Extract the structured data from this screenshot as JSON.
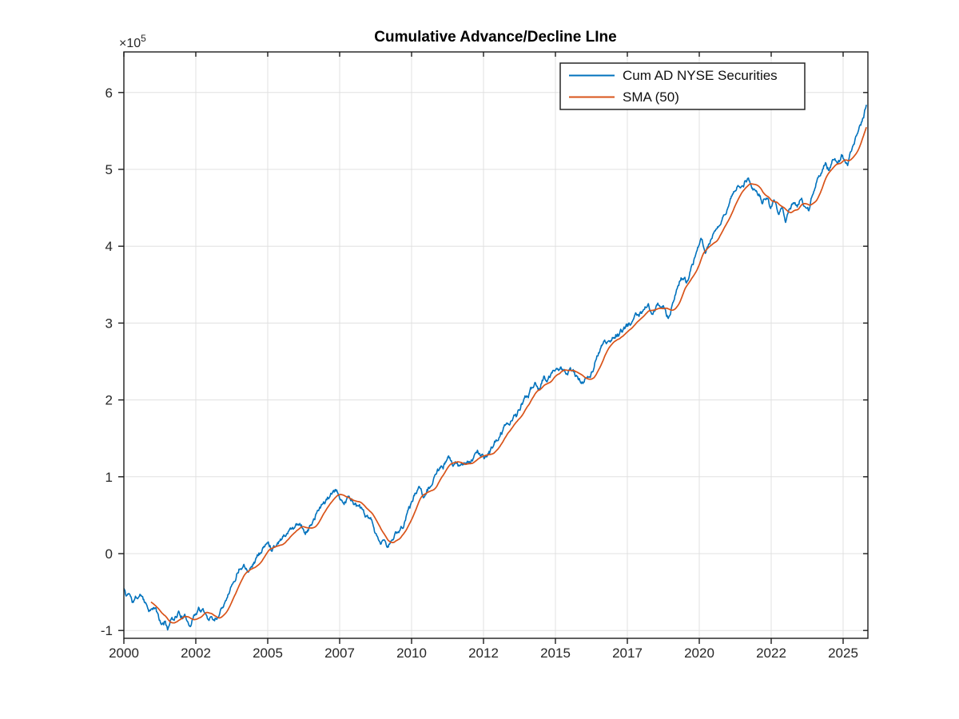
{
  "figure": {
    "background": "#ffffff"
  },
  "chart_data": {
    "type": "line",
    "title": "Cumulative Advance/Decline LIne",
    "xlabel": "",
    "ylabel": "",
    "y_axis_multiplier": {
      "base": "×10",
      "exponent": "5"
    },
    "xlim": [
      2000,
      2025.86
    ],
    "ylim": [
      -1.102,
      6.528
    ],
    "grid": true,
    "x_ticks": [
      {
        "value": 2000.0,
        "label": "2000"
      },
      {
        "value": 2002.5,
        "label": "2002"
      },
      {
        "value": 2005.0,
        "label": "2005"
      },
      {
        "value": 2007.5,
        "label": "2007"
      },
      {
        "value": 2010.0,
        "label": "2010"
      },
      {
        "value": 2012.5,
        "label": "2012"
      },
      {
        "value": 2015.0,
        "label": "2015"
      },
      {
        "value": 2017.5,
        "label": "2017"
      },
      {
        "value": 2020.0,
        "label": "2020"
      },
      {
        "value": 2022.5,
        "label": "2022"
      },
      {
        "value": 2025.0,
        "label": "2025"
      }
    ],
    "y_ticks": [
      {
        "value": -1,
        "label": "-1"
      },
      {
        "value": 0,
        "label": "0"
      },
      {
        "value": 1,
        "label": "1"
      },
      {
        "value": 2,
        "label": "2"
      },
      {
        "value": 3,
        "label": "3"
      },
      {
        "value": 4,
        "label": "4"
      },
      {
        "value": 5,
        "label": "5"
      },
      {
        "value": 6,
        "label": "6"
      }
    ],
    "colors": {
      "axis": "#1c1c1c",
      "grid": "#e0e0e0",
      "cum_ad_line": "#0072BD",
      "sma_line": "#D95319"
    },
    "legend": {
      "position": "top-right-inside",
      "entries": [
        "Cum AD NYSE Securities",
        "SMA (50)"
      ]
    },
    "sampling": {
      "points_per_year": 52,
      "noise_seed": 11,
      "noise_persistence": 0.86,
      "noise_shock": 0.05
    },
    "series": [
      {
        "name": "Cum AD NYSE Securities",
        "color": "#0072BD",
        "value_units": "1e5",
        "points": [
          [
            2000.0,
            -0.45
          ],
          [
            2000.08,
            -0.56
          ],
          [
            2000.18,
            -0.5
          ],
          [
            2000.3,
            -0.63
          ],
          [
            2000.42,
            -0.59
          ],
          [
            2000.55,
            -0.56
          ],
          [
            2000.65,
            -0.54
          ],
          [
            2000.8,
            -0.66
          ],
          [
            2000.95,
            -0.73
          ],
          [
            2001.05,
            -0.7
          ],
          [
            2001.18,
            -0.8
          ],
          [
            2001.3,
            -0.95
          ],
          [
            2001.4,
            -0.89
          ],
          [
            2001.52,
            -0.97
          ],
          [
            2001.62,
            -0.87
          ],
          [
            2001.75,
            -0.82
          ],
          [
            2001.9,
            -0.76
          ],
          [
            2002.0,
            -0.8
          ],
          [
            2002.15,
            -0.85
          ],
          [
            2002.3,
            -0.9
          ],
          [
            2002.45,
            -0.79
          ],
          [
            2002.6,
            -0.7
          ],
          [
            2002.75,
            -0.75
          ],
          [
            2002.9,
            -0.84
          ],
          [
            2003.05,
            -0.81
          ],
          [
            2003.15,
            -0.85
          ],
          [
            2003.3,
            -0.78
          ],
          [
            2003.45,
            -0.65
          ],
          [
            2003.6,
            -0.5
          ],
          [
            2003.8,
            -0.37
          ],
          [
            2004.0,
            -0.18
          ],
          [
            2004.15,
            -0.11
          ],
          [
            2004.3,
            -0.17
          ],
          [
            2004.5,
            -0.1
          ],
          [
            2004.65,
            -0.01
          ],
          [
            2004.8,
            0.05
          ],
          [
            2005.0,
            0.14
          ],
          [
            2005.12,
            0.08
          ],
          [
            2005.3,
            0.15
          ],
          [
            2005.5,
            0.23
          ],
          [
            2005.7,
            0.3
          ],
          [
            2005.88,
            0.35
          ],
          [
            2006.05,
            0.39
          ],
          [
            2006.15,
            0.41
          ],
          [
            2006.3,
            0.29
          ],
          [
            2006.45,
            0.33
          ],
          [
            2006.6,
            0.45
          ],
          [
            2006.78,
            0.56
          ],
          [
            2006.95,
            0.66
          ],
          [
            2007.1,
            0.72
          ],
          [
            2007.25,
            0.77
          ],
          [
            2007.38,
            0.79
          ],
          [
            2007.5,
            0.72
          ],
          [
            2007.62,
            0.67
          ],
          [
            2007.78,
            0.73
          ],
          [
            2007.95,
            0.7
          ],
          [
            2008.1,
            0.62
          ],
          [
            2008.25,
            0.56
          ],
          [
            2008.4,
            0.46
          ],
          [
            2008.55,
            0.41
          ],
          [
            2008.7,
            0.33
          ],
          [
            2008.85,
            0.15
          ],
          [
            2008.95,
            0.1
          ],
          [
            2009.02,
            0.19
          ],
          [
            2009.1,
            0.12
          ],
          [
            2009.18,
            0.07
          ],
          [
            2009.3,
            0.17
          ],
          [
            2009.5,
            0.27
          ],
          [
            2009.7,
            0.36
          ],
          [
            2009.9,
            0.6
          ],
          [
            2010.05,
            0.73
          ],
          [
            2010.2,
            0.82
          ],
          [
            2010.33,
            0.86
          ],
          [
            2010.45,
            0.77
          ],
          [
            2010.6,
            0.84
          ],
          [
            2010.75,
            0.95
          ],
          [
            2010.9,
            1.05
          ],
          [
            2011.1,
            1.13
          ],
          [
            2011.3,
            1.2
          ],
          [
            2011.45,
            1.15
          ],
          [
            2011.58,
            1.19
          ],
          [
            2011.7,
            1.1
          ],
          [
            2011.82,
            1.14
          ],
          [
            2011.95,
            1.17
          ],
          [
            2012.1,
            1.25
          ],
          [
            2012.3,
            1.31
          ],
          [
            2012.5,
            1.24
          ],
          [
            2012.65,
            1.29
          ],
          [
            2012.82,
            1.36
          ],
          [
            2013.0,
            1.49
          ],
          [
            2013.2,
            1.61
          ],
          [
            2013.4,
            1.72
          ],
          [
            2013.55,
            1.8
          ],
          [
            2013.65,
            1.76
          ],
          [
            2013.82,
            1.95
          ],
          [
            2014.0,
            2.03
          ],
          [
            2014.15,
            2.12
          ],
          [
            2014.3,
            2.24
          ],
          [
            2014.45,
            2.18
          ],
          [
            2014.6,
            2.3
          ],
          [
            2014.72,
            2.23
          ],
          [
            2014.9,
            2.36
          ],
          [
            2015.05,
            2.42
          ],
          [
            2015.25,
            2.44
          ],
          [
            2015.4,
            2.36
          ],
          [
            2015.55,
            2.39
          ],
          [
            2015.7,
            2.31
          ],
          [
            2015.85,
            2.28
          ],
          [
            2016.0,
            2.22
          ],
          [
            2016.1,
            2.32
          ],
          [
            2016.2,
            2.25
          ],
          [
            2016.35,
            2.46
          ],
          [
            2016.5,
            2.61
          ],
          [
            2016.65,
            2.73
          ],
          [
            2016.8,
            2.72
          ],
          [
            2016.95,
            2.8
          ],
          [
            2017.1,
            2.85
          ],
          [
            2017.3,
            2.9
          ],
          [
            2017.5,
            2.95
          ],
          [
            2017.7,
            3.03
          ],
          [
            2017.9,
            3.11
          ],
          [
            2018.1,
            3.18
          ],
          [
            2018.22,
            3.22
          ],
          [
            2018.35,
            3.1
          ],
          [
            2018.5,
            3.18
          ],
          [
            2018.65,
            3.26
          ],
          [
            2018.8,
            3.19
          ],
          [
            2018.92,
            3.06
          ],
          [
            2019.05,
            3.25
          ],
          [
            2019.2,
            3.42
          ],
          [
            2019.35,
            3.57
          ],
          [
            2019.45,
            3.6
          ],
          [
            2019.55,
            3.53
          ],
          [
            2019.75,
            3.76
          ],
          [
            2019.95,
            3.96
          ],
          [
            2020.1,
            4.05
          ],
          [
            2020.16,
            3.92
          ],
          [
            2020.22,
            3.84
          ],
          [
            2020.35,
            4.01
          ],
          [
            2020.5,
            4.16
          ],
          [
            2020.65,
            4.28
          ],
          [
            2020.8,
            4.36
          ],
          [
            2020.95,
            4.46
          ],
          [
            2021.1,
            4.6
          ],
          [
            2021.25,
            4.74
          ],
          [
            2021.4,
            4.8
          ],
          [
            2021.55,
            4.83
          ],
          [
            2021.68,
            4.88
          ],
          [
            2021.82,
            4.79
          ],
          [
            2021.95,
            4.73
          ],
          [
            2022.08,
            4.68
          ],
          [
            2022.2,
            4.57
          ],
          [
            2022.33,
            4.65
          ],
          [
            2022.47,
            4.48
          ],
          [
            2022.6,
            4.57
          ],
          [
            2022.75,
            4.36
          ],
          [
            2022.88,
            4.46
          ],
          [
            2023.0,
            4.34
          ],
          [
            2023.12,
            4.51
          ],
          [
            2023.27,
            4.58
          ],
          [
            2023.4,
            4.5
          ],
          [
            2023.55,
            4.64
          ],
          [
            2023.68,
            4.52
          ],
          [
            2023.8,
            4.46
          ],
          [
            2023.95,
            4.7
          ],
          [
            2024.1,
            4.85
          ],
          [
            2024.25,
            4.95
          ],
          [
            2024.4,
            5.05
          ],
          [
            2024.5,
            4.98
          ],
          [
            2024.65,
            5.12
          ],
          [
            2024.8,
            5.08
          ],
          [
            2024.95,
            5.19
          ],
          [
            2025.05,
            5.11
          ],
          [
            2025.16,
            5.04
          ],
          [
            2025.3,
            5.26
          ],
          [
            2025.45,
            5.41
          ],
          [
            2025.6,
            5.56
          ],
          [
            2025.72,
            5.68
          ],
          [
            2025.82,
            5.84
          ]
        ]
      },
      {
        "name": "SMA (50)",
        "color": "#D95319",
        "derived": "sma_of_series_0",
        "window_samples": 26,
        "display_from_sample": 49
      }
    ]
  }
}
